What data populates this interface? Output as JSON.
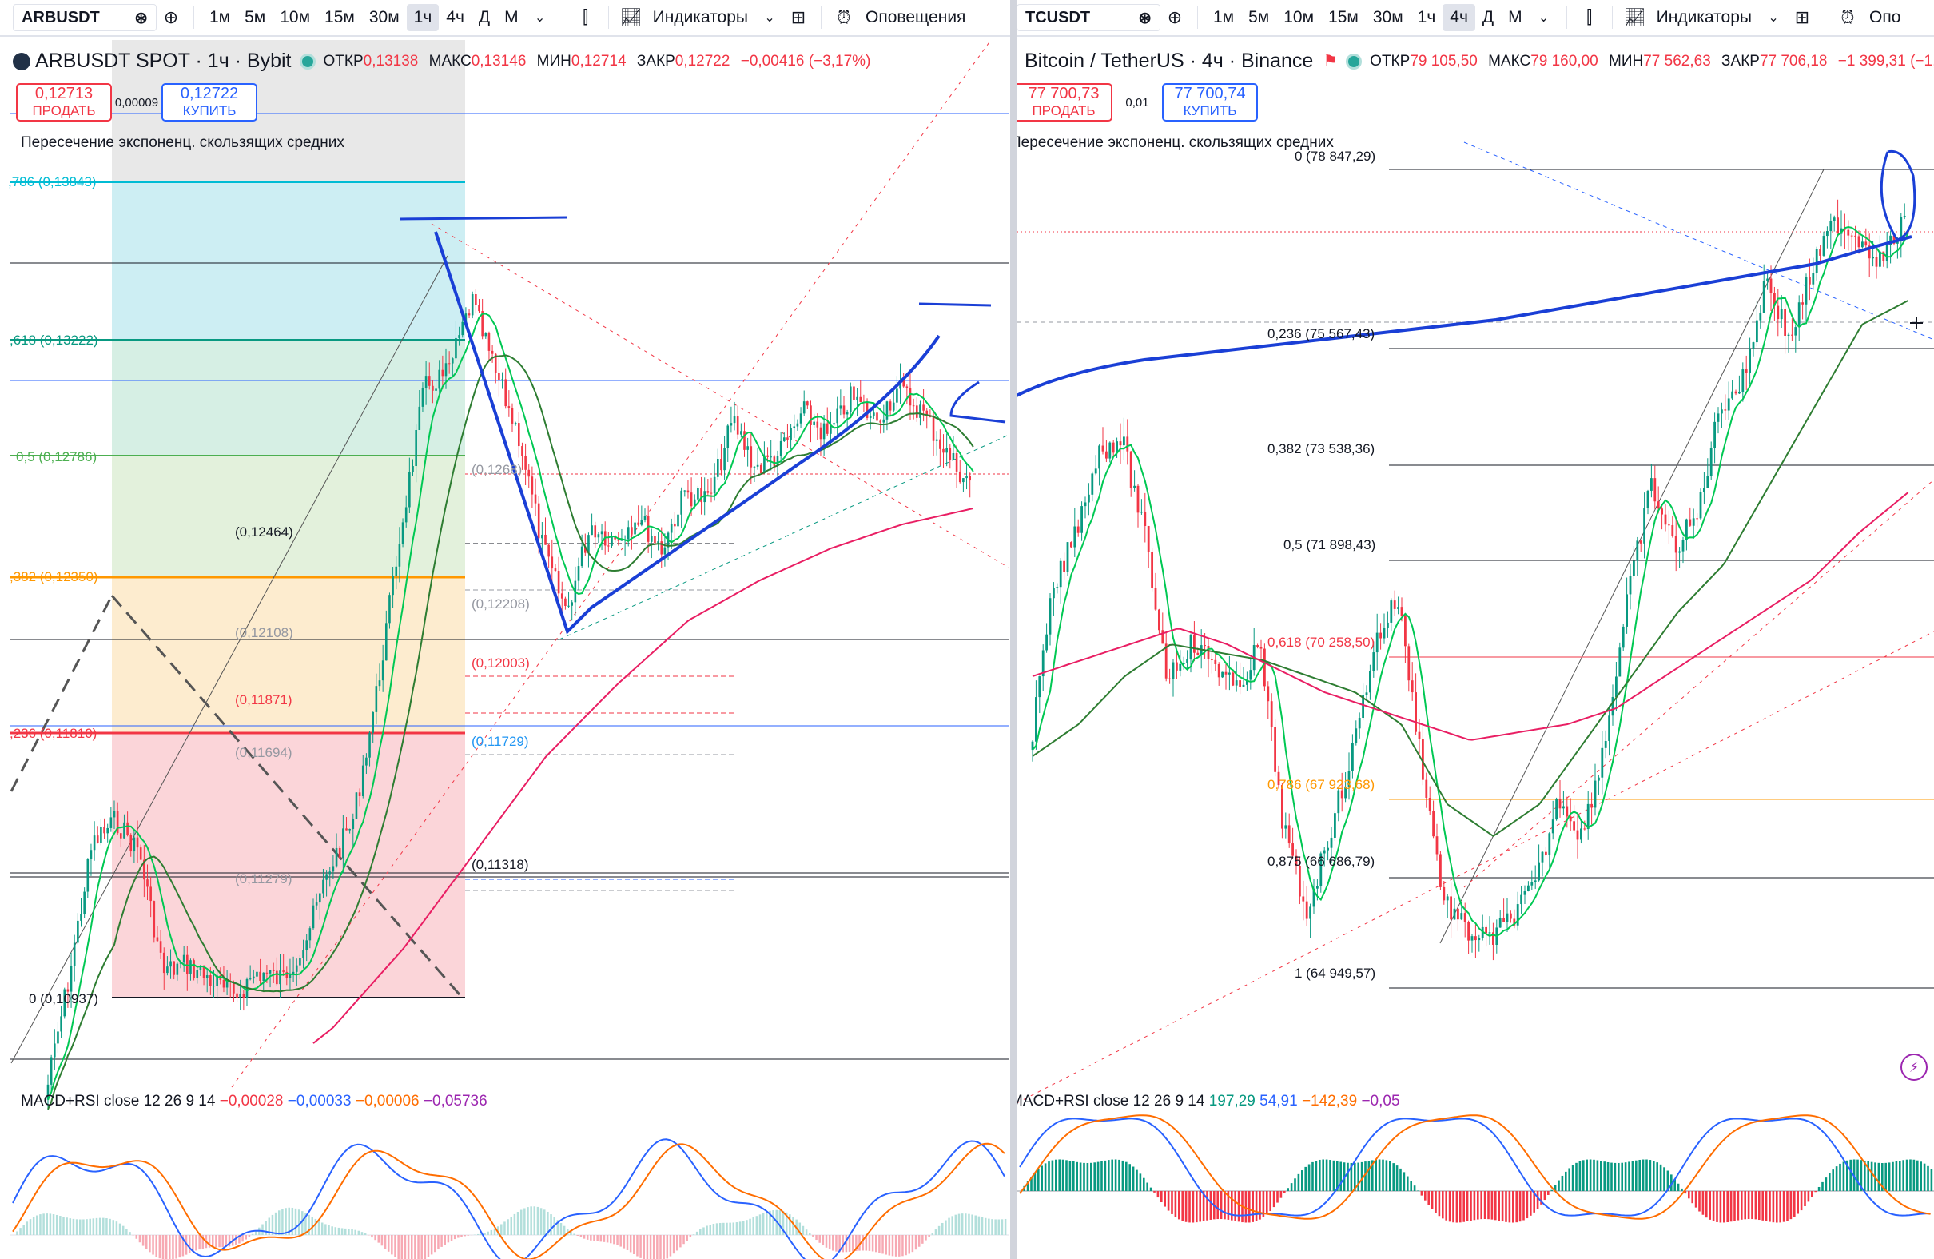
{
  "left": {
    "toolbar": {
      "symbol": "ARBUSDT",
      "intervals": [
        "1м",
        "5м",
        "10м",
        "15м",
        "30м",
        "1ч",
        "4ч",
        "Д",
        "М"
      ],
      "active_interval": "1ч",
      "indicators_label": "Индикаторы",
      "alerts_label": "Оповещения"
    },
    "legend": {
      "title": "ARBUSDT SPOT · 1ч · Bybit",
      "open_label": "ОТКР",
      "open": "0,13138",
      "high_label": "МАКС",
      "high": "0,13146",
      "low_label": "МИН",
      "low": "0,12714",
      "close_label": "ЗАКР",
      "close": "0,12722",
      "change": "−0,00416 (−3,17%)"
    },
    "trade": {
      "sell_price": "0,12713",
      "sell_label": "ПРОДАТЬ",
      "spread": "0,00009",
      "buy_price": "0,12722",
      "buy_label": "КУПИТЬ"
    },
    "indicator": "Пересечение экспоненц. скользящих средних",
    "macd": {
      "label": "MACD+RSI close 12 26 9 14",
      "v1": "−0,00028",
      "v2": "−0,00033",
      "v3": "−0,00006",
      "v4": "−0,05736"
    },
    "fib_left": [
      {
        "text": ",786 (0,13843)",
        "color": "#00bcd4"
      },
      {
        "text": ",618 (0,13222)",
        "color": "#089981"
      },
      {
        "text": "0,5 (0,12786)",
        "color": "#4caf50"
      },
      {
        "text": ",382 (0,12350)",
        "color": "#ff9800"
      },
      {
        "text": ",236 (0,11810)",
        "color": "#f23645"
      },
      {
        "text": "0 (0,10937)",
        "color": "#131722"
      }
    ],
    "fib_mid": [
      {
        "text": "(0,12464)",
        "color": "#131722"
      },
      {
        "text": "(0,12108)",
        "color": "#9598a1"
      },
      {
        "text": "(0,11871)",
        "color": "#f23645"
      },
      {
        "text": "(0,11694)",
        "color": "#9598a1"
      },
      {
        "text": "(0,11279)",
        "color": "#9598a1"
      }
    ],
    "fib_right": [
      {
        "text": "(0,1268)",
        "color": "#9598a1"
      },
      {
        "text": "(0,12208)",
        "color": "#9598a1"
      },
      {
        "text": "(0,12003)",
        "color": "#f23645"
      },
      {
        "text": "(0,11729)",
        "color": "#2196f3"
      },
      {
        "text": "(0,11318)",
        "color": "#131722"
      }
    ]
  },
  "right": {
    "toolbar": {
      "symbol": "TCUSDT",
      "intervals": [
        "1м",
        "5м",
        "10м",
        "15м",
        "30м",
        "1ч",
        "4ч",
        "Д",
        "М"
      ],
      "active_interval": "4ч",
      "indicators_label": "Индикаторы",
      "alerts_label": "Опо"
    },
    "legend": {
      "title": "Bitcoin / TetherUS · 4ч · Binance",
      "open_label": "ОТКР",
      "open": "79 105,50",
      "high_label": "МАКС",
      "high": "79 160,00",
      "low_label": "МИН",
      "low": "77 562,63",
      "close_label": "ЗАКР",
      "close": "77 706,18",
      "change": "−1 399,31 (−1,7"
    },
    "trade": {
      "sell_price": "77 700,73",
      "sell_label": "ПРОДАТЬ",
      "spread": "0,01",
      "buy_price": "77 700,74",
      "buy_label": "КУПИТЬ"
    },
    "indicator": "Пересечение экспоненц. скользящих средних",
    "macd": {
      "label": "MACD+RSI close 12 26 9 14",
      "v1": "197,29",
      "v2": "54,91",
      "v3": "−142,39",
      "v4": "−0,05"
    },
    "fib": [
      {
        "text": "0 (78 847,29)",
        "color": "#131722"
      },
      {
        "text": "0,236 (75 567,43)",
        "color": "#131722"
      },
      {
        "text": "0,382 (73 538,36)",
        "color": "#131722"
      },
      {
        "text": "0,5 (71 898,43)",
        "color": "#131722"
      },
      {
        "text": "0,618 (70 258,50)",
        "color": "#f23645"
      },
      {
        "text": "0,786 (67 923,68)",
        "color": "#ff9800"
      },
      {
        "text": "0,875 (66 686,79)",
        "color": "#131722"
      },
      {
        "text": "1 (64 949,57)",
        "color": "#131722"
      }
    ]
  }
}
